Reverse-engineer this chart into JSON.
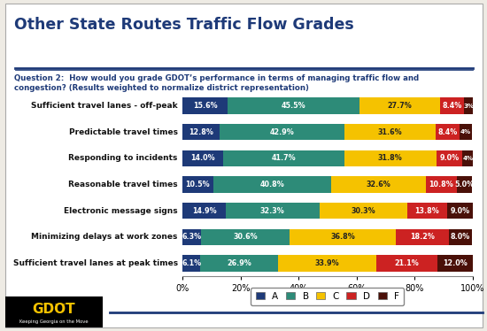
{
  "title": "Other State Routes Traffic Flow Grades",
  "subtitle": "Question 2:  How would you grade GDOT’s performance in terms of managing traffic flow and\ncongestion? (Results weighted to normalize district representation)",
  "categories": [
    "Sufficient travel lanes - off-peak",
    "Predictable travel times",
    "Responding to incidents",
    "Reasonable travel times",
    "Electronic message signs",
    "Minimizing delays at work zones",
    "Sufficient travel lanes at peak times"
  ],
  "grades": [
    "A",
    "B",
    "C",
    "D",
    "F"
  ],
  "colors": [
    "#1e3a78",
    "#2d8b78",
    "#f5c200",
    "#cc2222",
    "#4a1008"
  ],
  "data": [
    [
      15.6,
      45.5,
      27.7,
      8.4,
      3.0
    ],
    [
      12.8,
      42.9,
      31.6,
      8.4,
      4.0
    ],
    [
      14.0,
      41.7,
      31.8,
      9.0,
      4.0
    ],
    [
      10.5,
      40.8,
      32.6,
      10.8,
      5.0
    ],
    [
      14.9,
      32.3,
      30.3,
      13.8,
      9.0
    ],
    [
      6.3,
      30.6,
      36.8,
      18.2,
      8.0
    ],
    [
      6.1,
      26.9,
      33.9,
      21.1,
      12.0
    ]
  ],
  "bg_color": "#eeebe4",
  "title_color": "#1e3a78",
  "subtitle_color": "#1e3a78",
  "bar_height": 0.62,
  "text_colors": [
    "white",
    "white",
    "#222222",
    "white",
    "white"
  ]
}
